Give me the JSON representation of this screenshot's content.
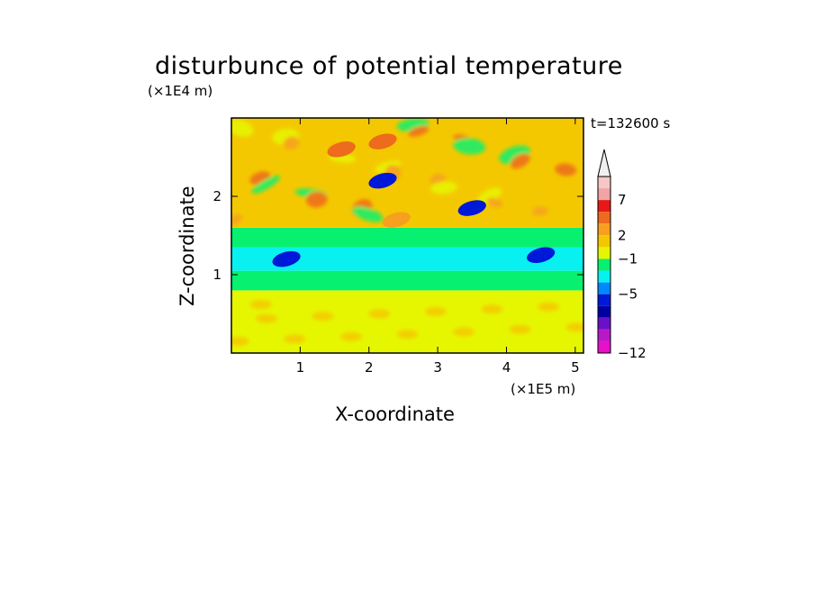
{
  "chart_data": {
    "type": "heatmap",
    "title": "disturbunce of potential temperature",
    "xlabel": "X-coordinate",
    "ylabel": "Z-coordinate",
    "x_multiplier_label": "(×1E5 m)",
    "y_multiplier_label": "(×1E4 m)",
    "time_label": "t=132600 s",
    "xlim": [
      0,
      5.12
    ],
    "ylim": [
      0,
      3.0
    ],
    "x_ticks": [
      "1",
      "2",
      "3",
      "4",
      "5"
    ],
    "y_ticks": [
      "1",
      "2"
    ],
    "colorbar": {
      "labels": [
        "7",
        "2",
        "−1",
        "−5",
        "−12"
      ],
      "colors": [
        "#f7c6c6",
        "#f0a4a4",
        "#e81818",
        "#ee6a1c",
        "#f7a020",
        "#f4c800",
        "#e6f600",
        "#08f070",
        "#08f0f0",
        "#0088ff",
        "#0018d8",
        "#0000a0",
        "#6a10c8",
        "#b818c8",
        "#e810c8"
      ],
      "extend_top_color": "#f0f0f0"
    },
    "field": {
      "layers": [
        {
          "z_range": [
            0,
            0.8
          ],
          "value": "0 to 2",
          "color": "#e6f600"
        },
        {
          "z_range": [
            0.8,
            1.05
          ],
          "value": "-1 to 0",
          "color": "#08f070"
        },
        {
          "z_range": [
            1.05,
            1.35
          ],
          "value": "-2 to -1",
          "color": "#08f0f0"
        },
        {
          "z_range": [
            1.35,
            1.6
          ],
          "value": "0 to 1",
          "color": "#08f070"
        },
        {
          "z_range": [
            1.6,
            3.0
          ],
          "value": "-2 to 3",
          "color": "#f4c800"
        }
      ],
      "features": [
        {
          "x": 2.2,
          "z": 2.2,
          "value": "-5",
          "color": "#0018d8"
        },
        {
          "x": 3.5,
          "z": 1.85,
          "value": "-5",
          "color": "#0018d8"
        },
        {
          "x": 4.5,
          "z": 1.25,
          "value": "-5",
          "color": "#0018d8"
        },
        {
          "x": 0.8,
          "z": 1.2,
          "value": "-5",
          "color": "#0018d8"
        },
        {
          "x": 1.6,
          "z": 2.6,
          "value": "3",
          "color": "#ee6a1c"
        },
        {
          "x": 2.2,
          "z": 2.7,
          "value": "3",
          "color": "#ee6a1c"
        },
        {
          "x": 2.4,
          "z": 1.7,
          "value": "2",
          "color": "#f7a020"
        }
      ]
    }
  }
}
